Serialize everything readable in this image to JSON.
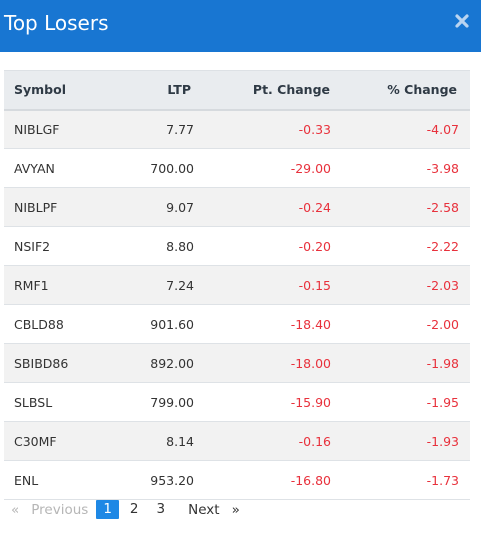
{
  "header": {
    "title": "Top Losers",
    "close_icon": "close-icon"
  },
  "colors": {
    "header_bg": "#1876d2",
    "negative": "#e8313c",
    "active_page": "#1e88e5"
  },
  "table": {
    "columns": [
      "Symbol",
      "LTP",
      "Pt. Change",
      "% Change"
    ],
    "rows": [
      {
        "symbol": "NIBLGF",
        "ltp": "7.77",
        "pt_change": "-0.33",
        "pct_change": "-4.07"
      },
      {
        "symbol": "AVYAN",
        "ltp": "700.00",
        "pt_change": "-29.00",
        "pct_change": "-3.98"
      },
      {
        "symbol": "NIBLPF",
        "ltp": "9.07",
        "pt_change": "-0.24",
        "pct_change": "-2.58"
      },
      {
        "symbol": "NSIF2",
        "ltp": "8.80",
        "pt_change": "-0.20",
        "pct_change": "-2.22"
      },
      {
        "symbol": "RMF1",
        "ltp": "7.24",
        "pt_change": "-0.15",
        "pct_change": "-2.03"
      },
      {
        "symbol": "CBLD88",
        "ltp": "901.60",
        "pt_change": "-18.40",
        "pct_change": "-2.00"
      },
      {
        "symbol": "SBIBD86",
        "ltp": "892.00",
        "pt_change": "-18.00",
        "pct_change": "-1.98"
      },
      {
        "symbol": "SLBSL",
        "ltp": "799.00",
        "pt_change": "-15.90",
        "pct_change": "-1.95"
      },
      {
        "symbol": "C30MF",
        "ltp": "8.14",
        "pt_change": "-0.16",
        "pct_change": "-1.93"
      },
      {
        "symbol": "ENL",
        "ltp": "953.20",
        "pt_change": "-16.80",
        "pct_change": "-1.73"
      }
    ]
  },
  "pagination": {
    "prev_arrow": "«",
    "prev_label": "Previous",
    "pages": [
      "1",
      "2",
      "3"
    ],
    "active_page": "1",
    "next_label": "Next",
    "next_arrow": "»"
  }
}
